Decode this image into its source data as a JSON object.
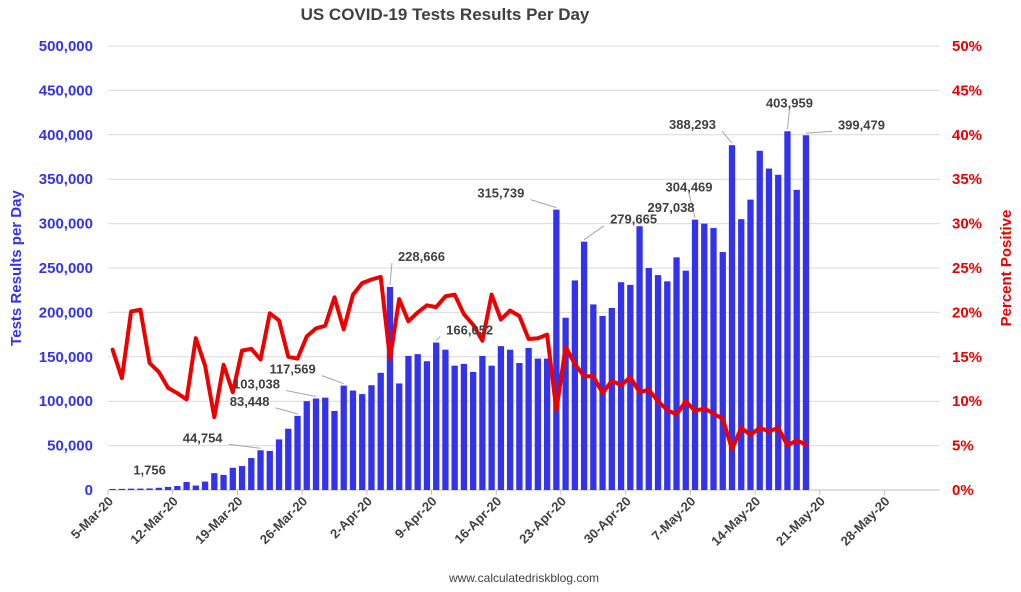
{
  "chart_data": {
    "type": "bar",
    "title": "US COVID-19 Tests Results Per Day",
    "ylabel": "Tests Results per Day",
    "y2label": "Percent Positive",
    "footer": "www.calculatedriskblog.com",
    "ylim": [
      0,
      500000
    ],
    "y2lim": [
      0,
      50
    ],
    "yticks": [
      "0",
      "50,000",
      "100,000",
      "150,000",
      "200,000",
      "250,000",
      "300,000",
      "350,000",
      "400,000",
      "450,000",
      "500,000"
    ],
    "y2ticks": [
      "0%",
      "5%",
      "10%",
      "15%",
      "20%",
      "25%",
      "30%",
      "35%",
      "40%",
      "45%",
      "50%"
    ],
    "xtick_labels": [
      "5-Mar-20",
      "12-Mar-20",
      "19-Mar-20",
      "26-Mar-20",
      "2-Apr-20",
      "9-Apr-20",
      "16-Apr-20",
      "23-Apr-20",
      "30-Apr-20",
      "7-May-20",
      "14-May-20",
      "21-May-20",
      "28-May-20"
    ],
    "x_start": "5-Mar-20",
    "x_end": "3-Jun-20",
    "gridlines": true,
    "colors": {
      "bars": "#3333ee",
      "line": "#ee0000"
    },
    "series": [
      {
        "name": "Tests Results Per Day",
        "values": [
          1200,
          1300,
          1500,
          1600,
          1756,
          2500,
          3500,
          4500,
          9000,
          5000,
          9500,
          19000,
          17000,
          25000,
          27000,
          36000,
          44754,
          44000,
          57000,
          69000,
          83448,
          100000,
          103038,
          104000,
          89000,
          117569,
          112000,
          108000,
          118000,
          132000,
          228666,
          120000,
          151000,
          153000,
          145000,
          166052,
          158000,
          140000,
          142000,
          133000,
          151000,
          140000,
          162000,
          158000,
          143000,
          160000,
          148000,
          148000,
          315739,
          194000,
          236000,
          279665,
          209000,
          196000,
          205000,
          234000,
          231000,
          297038,
          250000,
          242000,
          235000,
          262000,
          247000,
          304469,
          300000,
          295000,
          268000,
          388293,
          305000,
          327000,
          382000,
          362000,
          355000,
          403959,
          338000,
          399479
        ]
      },
      {
        "name": "Percent Positive",
        "values": [
          15.8,
          12.6,
          20.1,
          20.3,
          14.3,
          13.3,
          11.5,
          10.9,
          10.2,
          17.1,
          14.0,
          8.2,
          14.1,
          11.0,
          15.7,
          15.9,
          14.7,
          19.9,
          19.1,
          15.0,
          14.8,
          17.3,
          18.2,
          18.5,
          21.7,
          18.1,
          22.0,
          23.3,
          23.7,
          24.0,
          14.8,
          21.5,
          19.0,
          20.0,
          20.8,
          20.6,
          21.8,
          22.0,
          19.8,
          18.6,
          16.8,
          22.0,
          19.2,
          20.2,
          19.6,
          17.0,
          17.1,
          17.5,
          9.0,
          16.1,
          14.2,
          12.8,
          12.8,
          10.9,
          12.3,
          11.8,
          12.7,
          11.0,
          11.3,
          10.0,
          9.0,
          8.5,
          10.0,
          8.9,
          9.2,
          8.6,
          8.0,
          4.6,
          7.0,
          6.2,
          7.0,
          6.6,
          7.0,
          5.0,
          5.6,
          5.1
        ]
      }
    ],
    "annotations": [
      {
        "label": "1,756",
        "index": 4
      },
      {
        "label": "44,754",
        "index": 16
      },
      {
        "label": "83,448",
        "index": 20
      },
      {
        "label": "103,038",
        "index": 22
      },
      {
        "label": "117,569",
        "index": 25
      },
      {
        "label": "228,666",
        "index": 30
      },
      {
        "label": "166,052",
        "index": 35
      },
      {
        "label": "315,739",
        "index": 48
      },
      {
        "label": "279,665",
        "index": 51
      },
      {
        "label": "297,038",
        "index": 57
      },
      {
        "label": "304,469",
        "index": 63
      },
      {
        "label": "388,293",
        "index": 67
      },
      {
        "label": "403,959",
        "index": 73
      },
      {
        "label": "399,479",
        "index": 75
      }
    ]
  }
}
